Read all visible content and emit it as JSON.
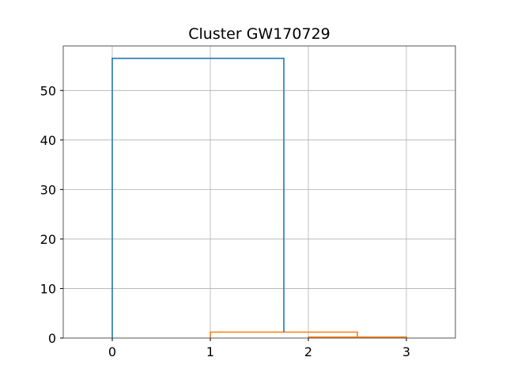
{
  "chart_data": {
    "type": "line",
    "subtype": "dendrogram",
    "title": "Cluster GW170729",
    "xlabel": "",
    "ylabel": "",
    "xlim": [
      -0.5,
      3.5
    ],
    "ylim": [
      0,
      59
    ],
    "x_ticks": [
      0,
      1,
      2,
      3
    ],
    "y_ticks": [
      0,
      10,
      20,
      30,
      40,
      50
    ],
    "grid": true,
    "colors": {
      "link_above_threshold": "#1f77b4",
      "cluster_links": "#ff7f0e"
    },
    "links": [
      {
        "x": [
          2.0,
          2.0,
          3.0,
          3.0
        ],
        "y": [
          0,
          0.2,
          0.2,
          0
        ],
        "color": "#ff7f0e"
      },
      {
        "x": [
          1.0,
          1.0,
          2.5,
          2.5
        ],
        "y": [
          0,
          1.2,
          1.2,
          0.2
        ],
        "color": "#ff7f0e"
      },
      {
        "x": [
          0.0,
          0.0,
          1.75,
          1.75
        ],
        "y": [
          0,
          56.5,
          56.5,
          1.2
        ],
        "color": "#1f77b4"
      }
    ]
  }
}
